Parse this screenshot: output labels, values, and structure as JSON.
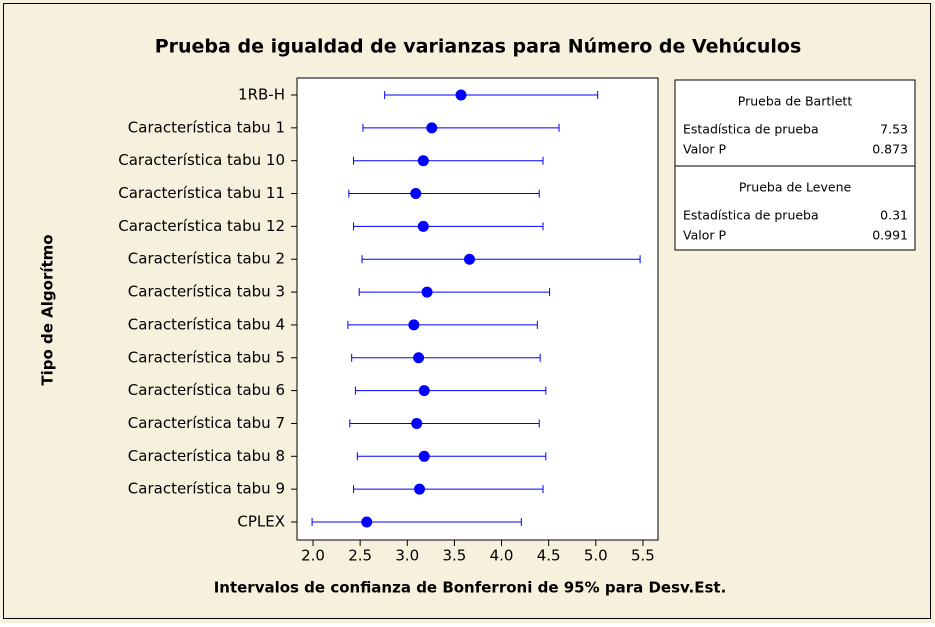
{
  "chart_data": {
    "type": "interval",
    "title": "Prueba de igualdad de varianzas para Número de Vehúculos",
    "x_label": "Intervalos de confianza de Bonferroni de 95% para Desv.Est.",
    "y_label": "Tipo de Algorítmo",
    "categories": [
      "1RB-H",
      "Característica tabu 1",
      "Característica tabu 10",
      "Característica tabu 11",
      "Característica tabu 12",
      "Característica tabu 2",
      "Característica tabu 3",
      "Característica tabu 4",
      "Característica tabu 5",
      "Característica tabu 6",
      "Característica tabu 7",
      "Característica tabu 8",
      "Característica tabu 9",
      "CPLEX"
    ],
    "values": [
      3.57,
      3.26,
      3.17,
      3.09,
      3.17,
      3.66,
      3.21,
      3.07,
      3.12,
      3.18,
      3.1,
      3.18,
      3.13,
      2.57
    ],
    "lower": [
      2.76,
      2.53,
      2.43,
      2.38,
      2.43,
      2.52,
      2.49,
      2.37,
      2.41,
      2.45,
      2.39,
      2.47,
      2.43,
      1.99
    ],
    "upper": [
      5.02,
      4.61,
      4.44,
      4.4,
      4.44,
      5.47,
      4.51,
      4.38,
      4.41,
      4.47,
      4.4,
      4.47,
      4.44,
      4.21
    ],
    "color": "#0000ff",
    "xlim": [
      1.83,
      5.66
    ],
    "xticks": [
      {
        "value": 2,
        "label": "2.0"
      },
      2.5,
      {
        "value": 3,
        "label": "3.0"
      },
      3.5,
      {
        "value": 4,
        "label": "4.0"
      },
      4.5,
      {
        "value": 5,
        "label": "5.0"
      },
      5.5
    ],
    "tests": [
      {
        "title": "Prueba de Bartlett",
        "rows": [
          [
            "Estadística de prueba",
            7.53
          ],
          [
            "Valor P",
            0.873
          ]
        ]
      },
      {
        "title": "Prueba de Levene",
        "rows": [
          [
            "Estadística de prueba",
            0.31
          ],
          [
            "Valor P",
            0.991
          ]
        ]
      }
    ]
  }
}
